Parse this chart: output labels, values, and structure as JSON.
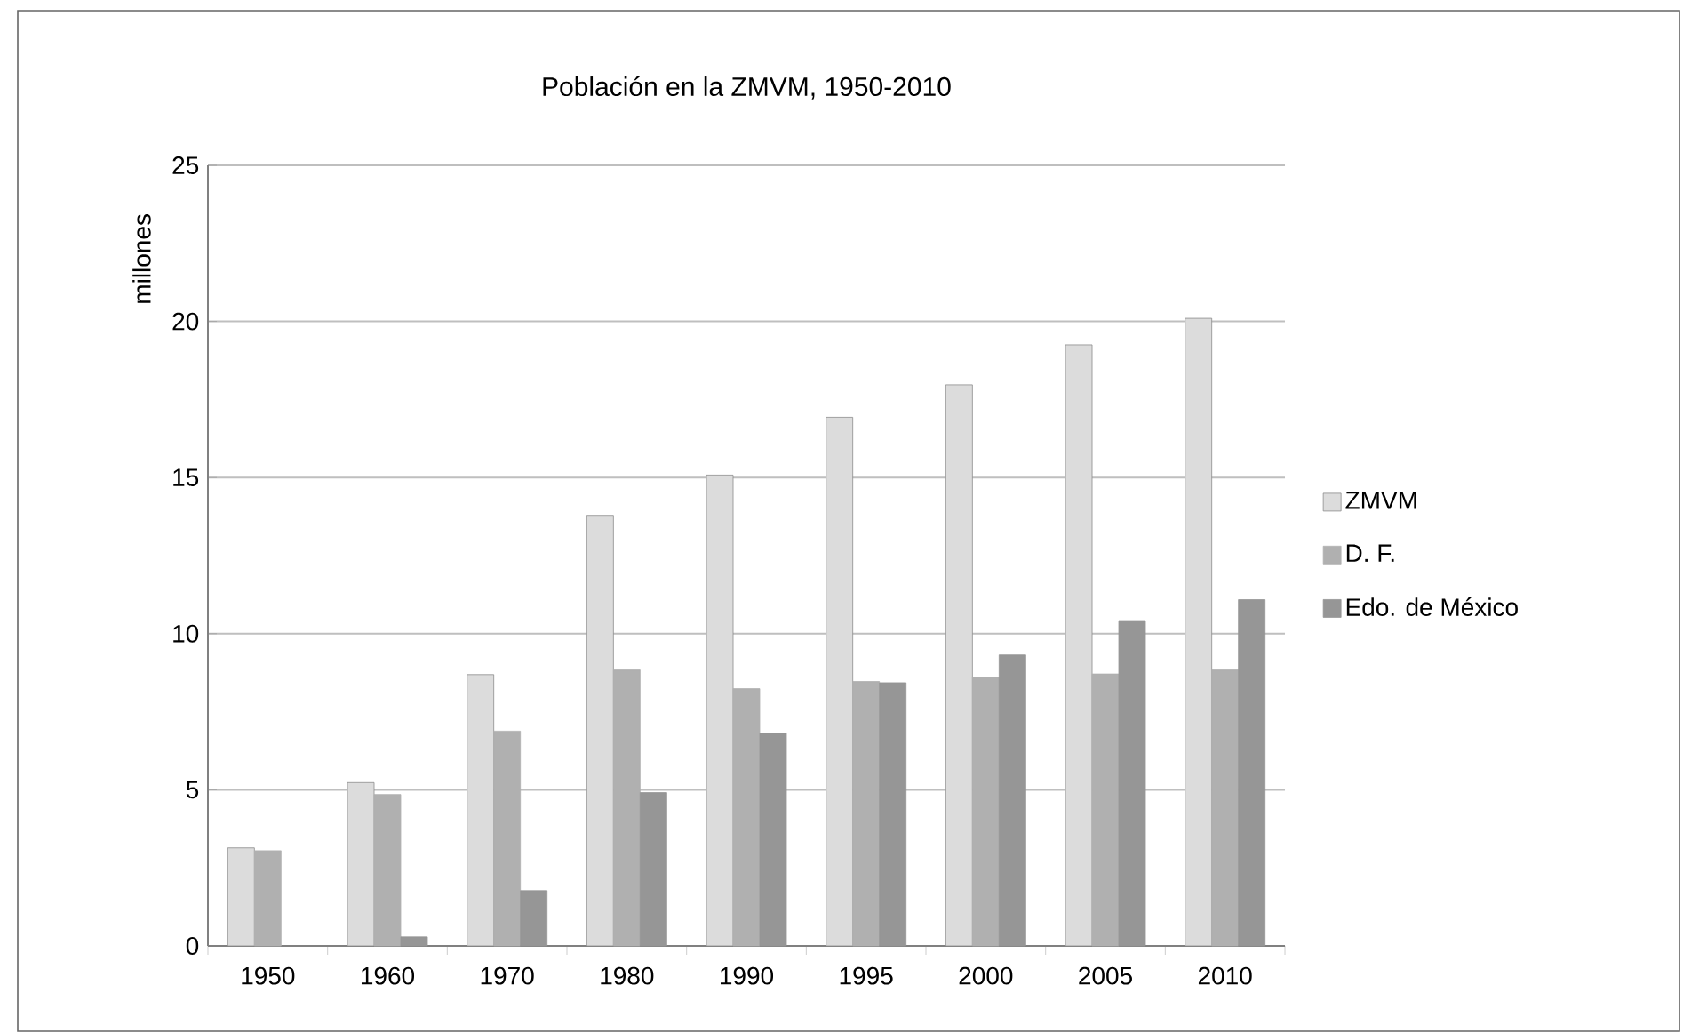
{
  "chart_data": {
    "type": "bar",
    "title": "Población en la ZMVM, 1950-2010",
    "ylabel": "millones",
    "categories": [
      "1950",
      "1960",
      "1970",
      "1980",
      "1990",
      "1995",
      "2000",
      "2005",
      "2010"
    ],
    "series": [
      {
        "name": "ZMVM",
        "color": "#dcdcdc",
        "values": [
          3.14,
          5.23,
          8.69,
          13.79,
          15.08,
          16.93,
          17.97,
          19.25,
          20.1
        ]
      },
      {
        "name": "D. F.",
        "color": "#b0b0b0",
        "values": [
          3.05,
          4.85,
          6.88,
          8.84,
          8.24,
          8.47,
          8.6,
          8.71,
          8.84
        ]
      },
      {
        "name": "Edo. de México",
        "color": "#969696",
        "values": [
          null,
          0.29,
          1.77,
          4.91,
          6.81,
          8.43,
          9.32,
          10.42,
          11.09
        ]
      }
    ],
    "ylim": [
      0,
      25
    ],
    "yticks": [
      0,
      5,
      10,
      15,
      20,
      25
    ],
    "grid": "y",
    "legend": "right"
  }
}
